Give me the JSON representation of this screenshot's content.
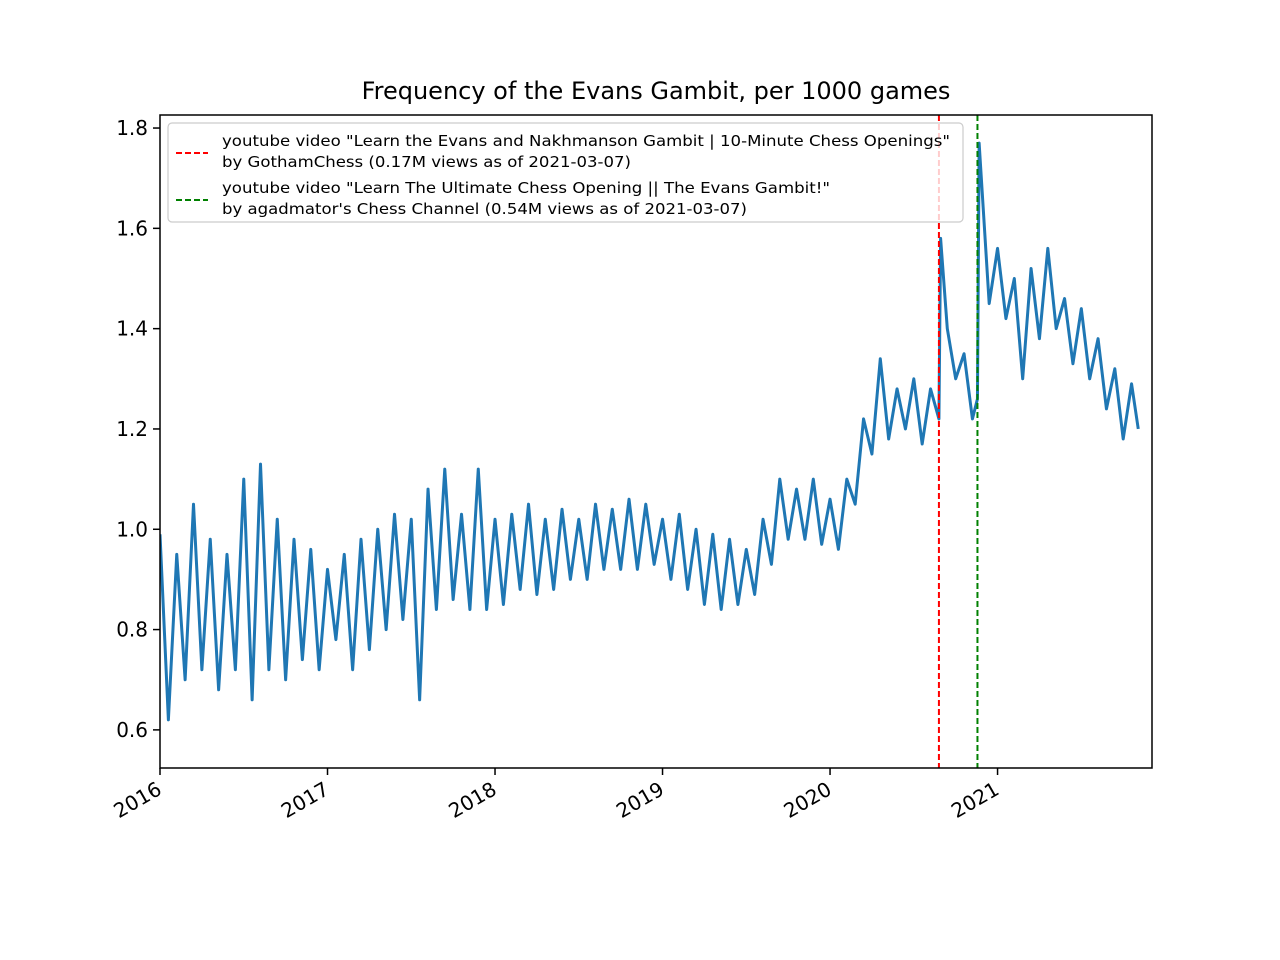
{
  "chart_data": {
    "type": "line",
    "title": "Frequency of the Evans Gambit, per 1000 games",
    "x": [
      2016.0,
      2016.05,
      2016.1,
      2016.15,
      2016.2,
      2016.25,
      2016.3,
      2016.35,
      2016.4,
      2016.45,
      2016.5,
      2016.55,
      2016.6,
      2016.65,
      2016.7,
      2016.75,
      2016.8,
      2016.85,
      2016.9,
      2016.95,
      2017.0,
      2017.05,
      2017.1,
      2017.15,
      2017.2,
      2017.25,
      2017.3,
      2017.35,
      2017.4,
      2017.45,
      2017.5,
      2017.55,
      2017.6,
      2017.65,
      2017.7,
      2017.75,
      2017.8,
      2017.85,
      2017.9,
      2017.95,
      2018.0,
      2018.05,
      2018.1,
      2018.15,
      2018.2,
      2018.25,
      2018.3,
      2018.35,
      2018.4,
      2018.45,
      2018.5,
      2018.55,
      2018.6,
      2018.65,
      2018.7,
      2018.75,
      2018.8,
      2018.85,
      2018.9,
      2018.95,
      2019.0,
      2019.05,
      2019.1,
      2019.15,
      2019.2,
      2019.25,
      2019.3,
      2019.35,
      2019.4,
      2019.45,
      2019.5,
      2019.55,
      2019.6,
      2019.65,
      2019.7,
      2019.75,
      2019.8,
      2019.85,
      2019.9,
      2019.95,
      2020.0,
      2020.05,
      2020.1,
      2020.15,
      2020.2,
      2020.25,
      2020.3,
      2020.35,
      2020.4,
      2020.45,
      2020.5,
      2020.55,
      2020.6,
      2020.65,
      2020.66,
      2020.7,
      2020.75,
      2020.8,
      2020.85,
      2020.88,
      2020.89,
      2020.95,
      2021.0,
      2021.05,
      2021.1,
      2021.15,
      2021.2,
      2021.25,
      2021.3,
      2021.35,
      2021.4,
      2021.45,
      2021.5,
      2021.55,
      2021.6,
      2021.65,
      2021.7,
      2021.75,
      2021.8,
      2021.84
    ],
    "series": [
      {
        "color": "#1f77b4",
        "values": [
          0.99,
          0.62,
          0.95,
          0.7,
          1.05,
          0.72,
          0.98,
          0.68,
          0.95,
          0.72,
          1.1,
          0.66,
          1.13,
          0.72,
          1.02,
          0.7,
          0.98,
          0.74,
          0.96,
          0.72,
          0.92,
          0.78,
          0.95,
          0.72,
          0.98,
          0.76,
          1.0,
          0.8,
          1.03,
          0.82,
          1.02,
          0.66,
          1.08,
          0.84,
          1.12,
          0.86,
          1.03,
          0.84,
          1.12,
          0.84,
          1.02,
          0.85,
          1.03,
          0.88,
          1.05,
          0.87,
          1.02,
          0.88,
          1.04,
          0.9,
          1.02,
          0.9,
          1.05,
          0.92,
          1.04,
          0.92,
          1.06,
          0.92,
          1.05,
          0.93,
          1.02,
          0.9,
          1.03,
          0.88,
          1.0,
          0.85,
          0.99,
          0.84,
          0.98,
          0.85,
          0.96,
          0.87,
          1.02,
          0.93,
          1.1,
          0.98,
          1.08,
          0.98,
          1.1,
          0.97,
          1.06,
          0.96,
          1.1,
          1.05,
          1.22,
          1.15,
          1.34,
          1.18,
          1.28,
          1.2,
          1.3,
          1.17,
          1.28,
          1.22,
          1.58,
          1.4,
          1.3,
          1.35,
          1.22,
          1.26,
          1.77,
          1.45,
          1.56,
          1.42,
          1.5,
          1.3,
          1.52,
          1.38,
          1.56,
          1.4,
          1.46,
          1.33,
          1.44,
          1.3,
          1.38,
          1.24,
          1.32,
          1.18,
          1.29,
          1.2
        ]
      }
    ],
    "vlines": [
      {
        "x": 2020.65,
        "color": "red",
        "label": [
          "youtube video \"Learn the Evans and Nakhmanson Gambit | 10-Minute Chess Openings\"",
          "by GothamChess (0.17M views as of 2021-03-07)"
        ]
      },
      {
        "x": 2020.88,
        "color": "green",
        "label": [
          "youtube video \"Learn The Ultimate Chess Opening || The Evans Gambit!\"",
          "by agadmator's Chess Channel (0.54M views as of 2021-03-07)"
        ]
      }
    ],
    "xlim": [
      2016,
      2021.922
    ],
    "xticks": [
      2016,
      2017,
      2018,
      2019,
      2020,
      2021
    ],
    "ylim": [
      0.524,
      1.826
    ],
    "yticks": [
      {
        "value": 0.6,
        "label": "0.6"
      },
      {
        "value": 0.8,
        "label": "0.8"
      },
      {
        "value": 1.0,
        "label": "1.0"
      },
      {
        "value": 1.2,
        "label": "1.2"
      },
      {
        "value": 1.4,
        "label": "1.4"
      },
      {
        "value": 1.6,
        "label": "1.6"
      },
      {
        "value": 1.8,
        "label": "1.8"
      }
    ],
    "legend": "upper left",
    "grid": false
  }
}
